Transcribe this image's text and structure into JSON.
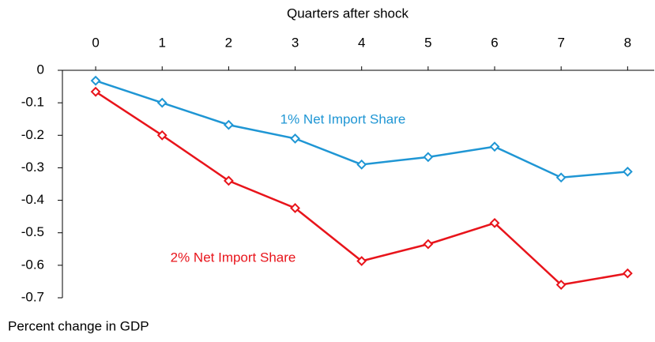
{
  "chart_data": {
    "type": "line",
    "x_label": "Quarters after shock",
    "y_label": "Percent change in GDP",
    "x": [
      0,
      1,
      2,
      3,
      4,
      5,
      6,
      7,
      8
    ],
    "xlim": [
      -0.5,
      8.4
    ],
    "xticks": [
      0,
      1,
      2,
      3,
      4,
      5,
      6,
      7,
      8
    ],
    "ylim": [
      -0.7,
      0
    ],
    "yticks": [
      0,
      -0.1,
      -0.2,
      -0.3,
      -0.4,
      -0.5,
      -0.6,
      -0.7
    ],
    "series": [
      {
        "name": "1% Net Import Share",
        "color": "#1f96d4",
        "values": [
          -0.032,
          -0.1,
          -0.168,
          -0.21,
          -0.29,
          -0.267,
          -0.235,
          -0.33,
          -0.312
        ]
      },
      {
        "name": "2% Net Import Share",
        "color": "#e8141b",
        "values": [
          -0.066,
          -0.2,
          -0.34,
          -0.424,
          -0.587,
          -0.535,
          -0.47,
          -0.66,
          -0.625
        ]
      }
    ]
  }
}
